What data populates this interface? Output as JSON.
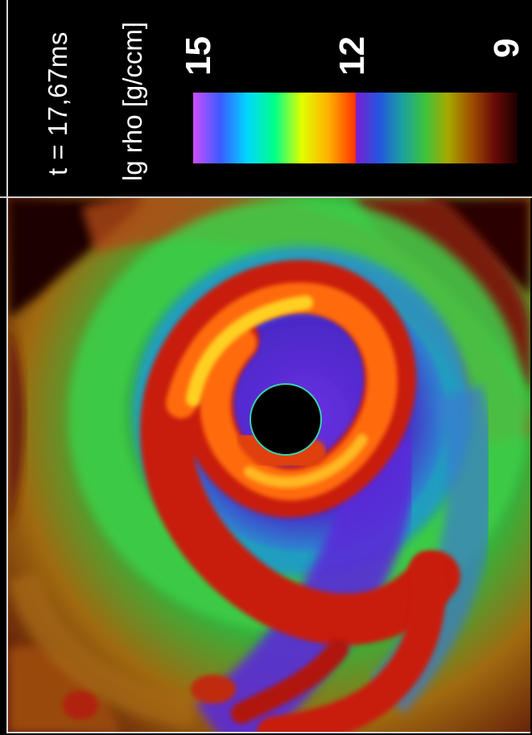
{
  "time_label": "t = 17,67ms",
  "quantity_label": "lg rho [g/ccm]",
  "colorbar": {
    "ticks": [
      "15",
      "12",
      "9"
    ],
    "top_value": 15,
    "bottom_value": 9,
    "colors_high_segment": [
      "#d04dff",
      "#3b5bff",
      "#00d8ff",
      "#00ff88",
      "#e0ff00",
      "#ffb000",
      "#ff3000"
    ],
    "colors_low_segment": [
      "#7a1fd0",
      "#2454e0",
      "#1aa0a0",
      "#3ec43a",
      "#a8a800",
      "#a05000",
      "#6a0a08",
      "#1a0000"
    ]
  },
  "colors": {
    "background": "#000000",
    "core": "#000000",
    "outer_green": "#3fbf3a",
    "outer_red": "#8a1a10",
    "mid_purple": "#5a2ad8",
    "spiral_orange": "#ff7a10",
    "spiral_yellow": "#ffd020",
    "spiral_red": "#d0200a"
  }
}
